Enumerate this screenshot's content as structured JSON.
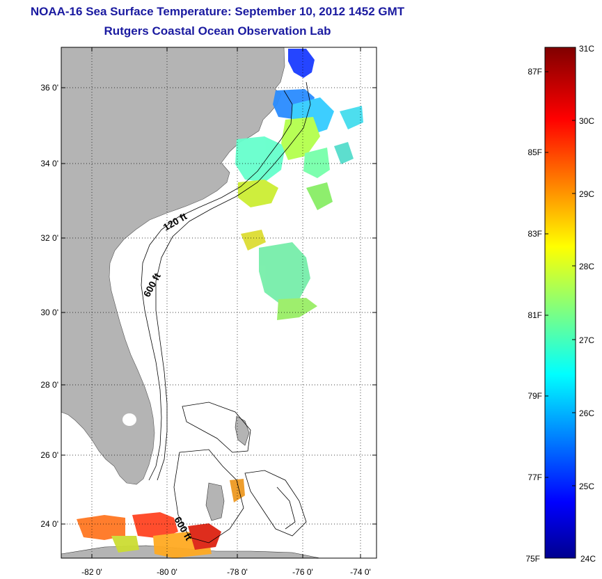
{
  "title": {
    "line1": "NOAA-16 Sea Surface Temperature:  September 10, 2012 1452 GMT",
    "line2": "Rutgers Coastal Ocean Observation Lab"
  },
  "map": {
    "lat_ticks": [
      "36 0'",
      "34 0'",
      "32 0'",
      "30 0'",
      "28 0'",
      "26 0'",
      "24 0'"
    ],
    "lon_ticks": [
      "-82 0'",
      "-80 0'",
      "-78 0'",
      "-76 0'",
      "-74 0'"
    ],
    "contour_labels": [
      "120 ft",
      "600 ft",
      "600 ft"
    ],
    "colors": {
      "land": "#b4b4b4",
      "water": "#ffffff"
    }
  },
  "colorbar": {
    "celsius": [
      "31C",
      "30C",
      "29C",
      "28C",
      "27C",
      "26C",
      "25C",
      "24C"
    ],
    "fahrenheit": [
      "87F",
      "85F",
      "83F",
      "81F",
      "79F",
      "77F",
      "75F"
    ],
    "range_c": [
      24,
      31
    ]
  }
}
